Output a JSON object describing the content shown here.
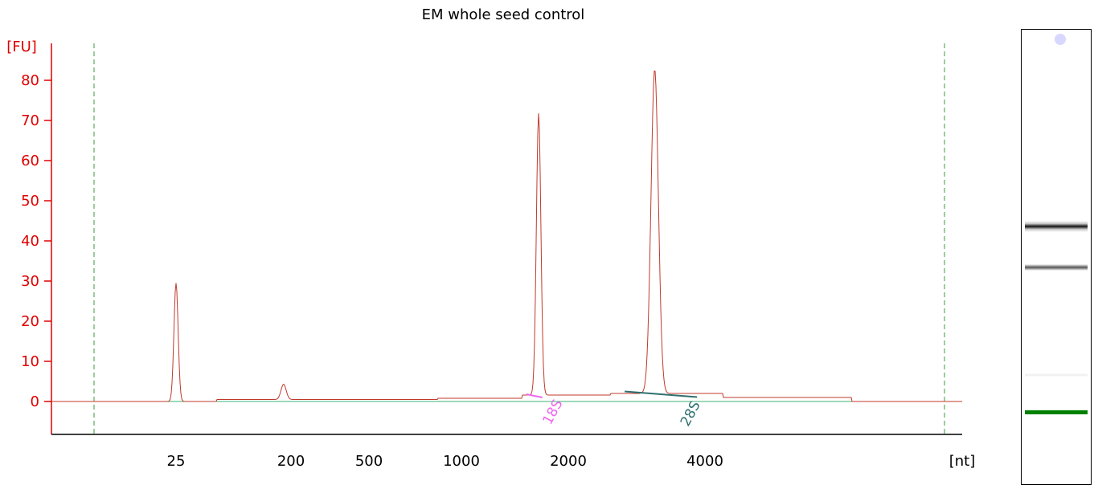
{
  "chart_data": {
    "type": "line",
    "title": "EM whole seed control",
    "ylabel": "[FU]",
    "xlabel": "[nt]",
    "ylim": [
      -8,
      90
    ],
    "yticks": [
      0,
      10,
      20,
      30,
      40,
      50,
      60,
      70,
      80
    ],
    "xtick_labels": [
      "25",
      "200",
      "500",
      "1000",
      "2000",
      "4000"
    ],
    "x_scale": "ladder (nonlinear)",
    "grid": false,
    "colors": {
      "axis_y": "#e00000",
      "trace": "#c0392b",
      "baseline": "#3cb371",
      "marker_18S": "#ee66ee",
      "marker_28S": "#2f6f6f",
      "dashed_marker": "#3a9a3a"
    },
    "peaks": [
      {
        "x": 25,
        "y": 29.5
      },
      {
        "x": 175,
        "y": 3.8
      },
      {
        "x": 1650,
        "y": 70.2
      },
      {
        "x": 3100,
        "y": 80.8
      }
    ],
    "annotations": [
      {
        "label": "18S",
        "x": 1800
      },
      {
        "label": "28S",
        "x": 3400
      }
    ]
  },
  "gel": {
    "bands_count": 3,
    "marker_color": "#008000"
  }
}
